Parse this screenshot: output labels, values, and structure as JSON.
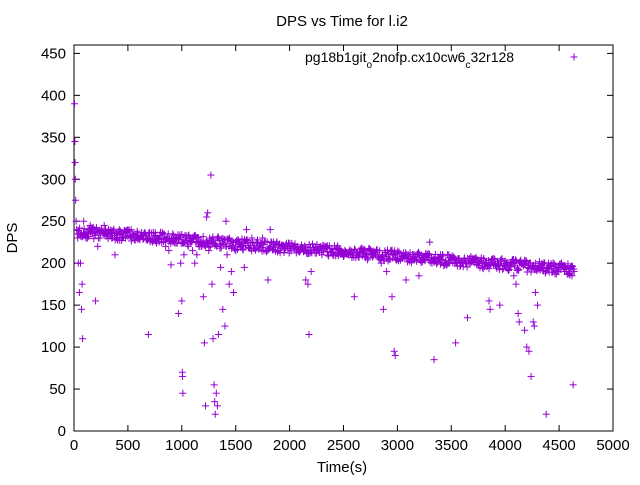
{
  "chart_data": {
    "type": "scatter",
    "title": "DPS vs Time for l.i2",
    "xlabel": "Time(s)",
    "ylabel": "DPS",
    "xlim": [
      0,
      5000
    ],
    "ylim": [
      0,
      460
    ],
    "x_ticks": [
      0,
      500,
      1000,
      1500,
      2000,
      2500,
      3000,
      3500,
      4000,
      4500,
      5000
    ],
    "y_ticks": [
      0,
      50,
      100,
      150,
      200,
      250,
      300,
      350,
      400,
      450
    ],
    "grid": false,
    "legend_position": "top-right",
    "marker": "+",
    "series": [
      {
        "name": "pg18b1git_o2nofp.cx10cw6_c32r128",
        "color": "#9400d3",
        "points": [
          [
            5,
            390
          ],
          [
            8,
            345
          ],
          [
            10,
            320
          ],
          [
            12,
            300
          ],
          [
            15,
            275
          ],
          [
            20,
            250
          ],
          [
            25,
            240
          ],
          [
            30,
            235
          ],
          [
            35,
            230
          ],
          [
            40,
            200
          ],
          [
            50,
            165
          ],
          [
            60,
            200
          ],
          [
            70,
            145
          ],
          [
            75,
            175
          ],
          [
            80,
            110
          ],
          [
            90,
            250
          ],
          [
            110,
            230
          ],
          [
            130,
            240
          ],
          [
            150,
            245
          ],
          [
            170,
            235
          ],
          [
            190,
            240
          ],
          [
            200,
            155
          ],
          [
            220,
            220
          ],
          [
            240,
            230
          ],
          [
            260,
            238
          ],
          [
            280,
            245
          ],
          [
            300,
            235
          ],
          [
            320,
            240
          ],
          [
            350,
            230
          ],
          [
            380,
            210
          ],
          [
            400,
            235
          ],
          [
            420,
            240
          ],
          [
            450,
            230
          ],
          [
            480,
            238
          ],
          [
            500,
            232
          ],
          [
            530,
            240
          ],
          [
            560,
            228
          ],
          [
            590,
            236
          ],
          [
            620,
            232
          ],
          [
            650,
            235
          ],
          [
            690,
            115
          ],
          [
            700,
            230
          ],
          [
            730,
            225
          ],
          [
            760,
            232
          ],
          [
            790,
            228
          ],
          [
            820,
            236
          ],
          [
            850,
            220
          ],
          [
            880,
            215
          ],
          [
            900,
            198
          ],
          [
            920,
            225
          ],
          [
            950,
            230
          ],
          [
            970,
            140
          ],
          [
            990,
            200
          ],
          [
            1000,
            155
          ],
          [
            1005,
            70
          ],
          [
            1007,
            65
          ],
          [
            1010,
            45
          ],
          [
            1020,
            210
          ],
          [
            1040,
            230
          ],
          [
            1060,
            220
          ],
          [
            1080,
            225
          ],
          [
            1100,
            215
          ],
          [
            1120,
            200
          ],
          [
            1140,
            210
          ],
          [
            1160,
            220
          ],
          [
            1180,
            225
          ],
          [
            1200,
            160
          ],
          [
            1210,
            105
          ],
          [
            1220,
            30
          ],
          [
            1230,
            255
          ],
          [
            1240,
            260
          ],
          [
            1250,
            215
          ],
          [
            1270,
            305
          ],
          [
            1280,
            175
          ],
          [
            1290,
            110
          ],
          [
            1300,
            55
          ],
          [
            1305,
            35
          ],
          [
            1310,
            20
          ],
          [
            1320,
            45
          ],
          [
            1330,
            30
          ],
          [
            1340,
            115
          ],
          [
            1360,
            195
          ],
          [
            1380,
            145
          ],
          [
            1400,
            125
          ],
          [
            1410,
            250
          ],
          [
            1420,
            210
          ],
          [
            1440,
            175
          ],
          [
            1460,
            190
          ],
          [
            1480,
            165
          ],
          [
            1500,
            215
          ],
          [
            1520,
            220
          ],
          [
            1540,
            225
          ],
          [
            1560,
            220
          ],
          [
            1580,
            195
          ],
          [
            1600,
            240
          ],
          [
            1650,
            230
          ],
          [
            1700,
            225
          ],
          [
            1750,
            230
          ],
          [
            1800,
            180
          ],
          [
            1820,
            240
          ],
          [
            1850,
            225
          ],
          [
            1900,
            222
          ],
          [
            1950,
            220
          ],
          [
            2000,
            218
          ],
          [
            2050,
            222
          ],
          [
            2100,
            215
          ],
          [
            2150,
            180
          ],
          [
            2170,
            175
          ],
          [
            2180,
            115
          ],
          [
            2200,
            190
          ],
          [
            2250,
            212
          ],
          [
            2300,
            210
          ],
          [
            2350,
            214
          ],
          [
            2400,
            210
          ],
          [
            2450,
            212
          ],
          [
            2500,
            208
          ],
          [
            2550,
            210
          ],
          [
            2600,
            160
          ],
          [
            2650,
            212
          ],
          [
            2700,
            208
          ],
          [
            2750,
            215
          ],
          [
            2800,
            210
          ],
          [
            2850,
            200
          ],
          [
            2870,
            145
          ],
          [
            2900,
            190
          ],
          [
            2920,
            210
          ],
          [
            2950,
            160
          ],
          [
            2970,
            95
          ],
          [
            2980,
            90
          ],
          [
            3000,
            205
          ],
          [
            3050,
            208
          ],
          [
            3080,
            180
          ],
          [
            3100,
            210
          ],
          [
            3150,
            205
          ],
          [
            3200,
            185
          ],
          [
            3250,
            208
          ],
          [
            3300,
            225
          ],
          [
            3320,
            200
          ],
          [
            3340,
            85
          ],
          [
            3380,
            205
          ],
          [
            3400,
            210
          ],
          [
            3450,
            203
          ],
          [
            3500,
            205
          ],
          [
            3540,
            105
          ],
          [
            3580,
            200
          ],
          [
            3620,
            205
          ],
          [
            3650,
            135
          ],
          [
            3700,
            202
          ],
          [
            3750,
            200
          ],
          [
            3800,
            205
          ],
          [
            3850,
            155
          ],
          [
            3860,
            145
          ],
          [
            3900,
            200
          ],
          [
            3950,
            150
          ],
          [
            4000,
            198
          ],
          [
            4050,
            200
          ],
          [
            4080,
            185
          ],
          [
            4100,
            175
          ],
          [
            4120,
            140
          ],
          [
            4130,
            130
          ],
          [
            4150,
            200
          ],
          [
            4180,
            120
          ],
          [
            4200,
            100
          ],
          [
            4220,
            95
          ],
          [
            4240,
            65
          ],
          [
            4260,
            130
          ],
          [
            4270,
            125
          ],
          [
            4280,
            165
          ],
          [
            4300,
            150
          ],
          [
            4320,
            195
          ],
          [
            4350,
            198
          ],
          [
            4380,
            20
          ],
          [
            4400,
            195
          ],
          [
            4450,
            192
          ],
          [
            4500,
            195
          ],
          [
            4550,
            190
          ],
          [
            4600,
            188
          ],
          [
            4620,
            185
          ],
          [
            4630,
            55
          ],
          [
            4640,
            190
          ]
        ]
      }
    ]
  }
}
